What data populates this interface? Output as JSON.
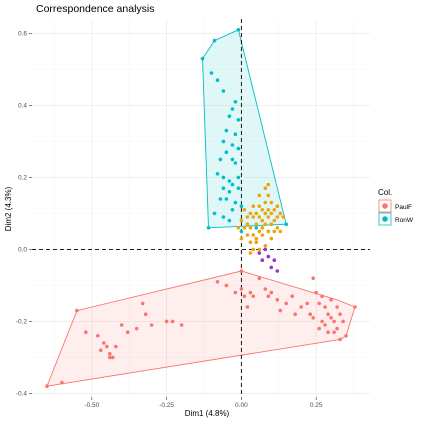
{
  "chart_data": {
    "type": "scatter",
    "title": "Correspondence analysis",
    "xlabel": "Dim1 (4.8%)",
    "ylabel": "Dim2 (4.3%)",
    "xlim": [
      -0.7,
      0.43
    ],
    "ylim": [
      -0.41,
      0.64
    ],
    "x_ticks": [
      -0.5,
      -0.25,
      0.0,
      0.25
    ],
    "x_tick_labels": [
      "-0.50",
      "-0.25",
      "0.00",
      "0.25"
    ],
    "y_ticks": [
      -0.4,
      -0.2,
      0.0,
      0.2,
      0.4,
      0.6
    ],
    "y_tick_labels": [
      "-0.4",
      "-0.2",
      "0.0",
      "0.2",
      "0.4",
      "0.6"
    ],
    "grid": true,
    "reference_lines": {
      "x": 0,
      "y": 0,
      "style": "dashed"
    },
    "legend": {
      "title": "Col.",
      "position": "right",
      "entries": [
        {
          "label": "PaulF",
          "color": "#F8766D"
        },
        {
          "label": "RonW",
          "color": "#00BFC4"
        }
      ]
    },
    "series": [
      {
        "name": "PaulF",
        "color": "#F8766D",
        "hull": [
          [
            -0.65,
            -0.38
          ],
          [
            -0.55,
            -0.17
          ],
          [
            0.0,
            -0.06
          ],
          [
            0.32,
            -0.14
          ],
          [
            0.38,
            -0.16
          ],
          [
            0.35,
            -0.24
          ],
          [
            0.33,
            -0.25
          ]
        ],
        "points": [
          [
            -0.65,
            -0.38
          ],
          [
            -0.6,
            -0.37
          ],
          [
            -0.55,
            -0.17
          ],
          [
            -0.52,
            -0.23
          ],
          [
            -0.45,
            -0.27
          ],
          [
            -0.48,
            -0.24
          ],
          [
            -0.47,
            -0.28
          ],
          [
            -0.44,
            -0.29
          ],
          [
            -0.46,
            -0.26
          ],
          [
            -0.44,
            -0.3
          ],
          [
            -0.43,
            -0.3
          ],
          [
            -0.42,
            -0.27
          ],
          [
            -0.4,
            -0.21
          ],
          [
            -0.38,
            -0.23
          ],
          [
            -0.35,
            -0.22
          ],
          [
            -0.33,
            -0.15
          ],
          [
            -0.32,
            -0.18
          ],
          [
            -0.3,
            -0.21
          ],
          [
            -0.25,
            -0.2
          ],
          [
            -0.23,
            -0.2
          ],
          [
            -0.2,
            -0.21
          ],
          [
            -0.08,
            -0.09
          ],
          [
            -0.05,
            -0.1
          ],
          [
            -0.02,
            -0.12
          ],
          [
            0.0,
            -0.06
          ],
          [
            0.0,
            -0.11
          ],
          [
            0.01,
            -0.13
          ],
          [
            0.02,
            -0.16
          ],
          [
            0.03,
            -0.12
          ],
          [
            0.04,
            -0.13
          ],
          [
            0.06,
            -0.08
          ],
          [
            0.08,
            -0.11
          ],
          [
            0.09,
            -0.13
          ],
          [
            0.1,
            -0.12
          ],
          [
            0.12,
            -0.14
          ],
          [
            0.13,
            -0.17
          ],
          [
            0.15,
            -0.15
          ],
          [
            0.17,
            -0.13
          ],
          [
            0.18,
            -0.18
          ],
          [
            0.2,
            -0.16
          ],
          [
            0.22,
            -0.15
          ],
          [
            0.23,
            -0.18
          ],
          [
            0.24,
            -0.08
          ],
          [
            0.25,
            -0.12
          ],
          [
            0.26,
            -0.15
          ],
          [
            0.27,
            -0.13
          ],
          [
            0.27,
            -0.2
          ],
          [
            0.28,
            -0.16
          ],
          [
            0.28,
            -0.21
          ],
          [
            0.29,
            -0.18
          ],
          [
            0.3,
            -0.14
          ],
          [
            0.3,
            -0.19
          ],
          [
            0.31,
            -0.2
          ],
          [
            0.32,
            -0.16
          ],
          [
            0.32,
            -0.22
          ],
          [
            0.33,
            -0.18
          ],
          [
            0.33,
            -0.25
          ],
          [
            0.34,
            -0.2
          ],
          [
            0.35,
            -0.24
          ],
          [
            0.38,
            -0.16
          ],
          [
            0.26,
            -0.22
          ],
          [
            0.24,
            -0.19
          ],
          [
            0.29,
            -0.23
          ],
          [
            0.31,
            -0.23
          ]
        ]
      },
      {
        "name": "RonW",
        "color": "#00BFC4",
        "hull": [
          [
            -0.13,
            0.53
          ],
          [
            -0.09,
            0.58
          ],
          [
            -0.01,
            0.61
          ],
          [
            0.15,
            0.07
          ],
          [
            -0.11,
            0.06
          ]
        ],
        "points": [
          [
            -0.13,
            0.53
          ],
          [
            -0.09,
            0.58
          ],
          [
            -0.01,
            0.61
          ],
          [
            -0.1,
            0.49
          ],
          [
            -0.08,
            0.47
          ],
          [
            -0.06,
            0.44
          ],
          [
            -0.03,
            0.39
          ],
          [
            -0.02,
            0.41
          ],
          [
            -0.04,
            0.37
          ],
          [
            -0.05,
            0.33
          ],
          [
            -0.01,
            0.36
          ],
          [
            -0.02,
            0.32
          ],
          [
            -0.06,
            0.3
          ],
          [
            -0.03,
            0.29
          ],
          [
            -0.01,
            0.28
          ],
          [
            -0.05,
            0.27
          ],
          [
            -0.03,
            0.25
          ],
          [
            -0.07,
            0.25
          ],
          [
            -0.02,
            0.24
          ],
          [
            -0.08,
            0.21
          ],
          [
            -0.06,
            0.2
          ],
          [
            -0.04,
            0.19
          ],
          [
            -0.03,
            0.18
          ],
          [
            -0.06,
            0.17
          ],
          [
            -0.01,
            0.17
          ],
          [
            -0.04,
            0.16
          ],
          [
            -0.07,
            0.14
          ],
          [
            -0.05,
            0.14
          ],
          [
            -0.02,
            0.13
          ],
          [
            -0.03,
            0.11
          ],
          [
            -0.09,
            0.1
          ],
          [
            -0.06,
            0.09
          ],
          [
            -0.04,
            0.08
          ],
          [
            -0.11,
            0.06
          ],
          [
            0.0,
            0.05
          ],
          [
            0.05,
            0.06
          ],
          [
            0.1,
            0.07
          ],
          [
            0.15,
            0.07
          ],
          [
            -0.01,
            0.2
          ],
          [
            0.0,
            0.12
          ]
        ]
      },
      {
        "name": "",
        "color": "#F0A30A",
        "points": [
          [
            0.08,
            0.17
          ],
          [
            0.09,
            0.18
          ],
          [
            0.06,
            0.15
          ],
          [
            0.09,
            0.15
          ],
          [
            0.08,
            0.13
          ],
          [
            0.1,
            0.13
          ],
          [
            0.04,
            0.12
          ],
          [
            0.06,
            0.12
          ],
          [
            0.07,
            0.11
          ],
          [
            0.09,
            0.11
          ],
          [
            0.11,
            0.11
          ],
          [
            0.12,
            0.12
          ],
          [
            0.01,
            0.11
          ],
          [
            0.03,
            0.1
          ],
          [
            0.05,
            0.1
          ],
          [
            0.08,
            0.1
          ],
          [
            0.1,
            0.1
          ],
          [
            0.13,
            0.1
          ],
          [
            0.02,
            0.09
          ],
          [
            0.04,
            0.09
          ],
          [
            0.06,
            0.09
          ],
          [
            0.07,
            0.08
          ],
          [
            0.09,
            0.09
          ],
          [
            0.11,
            0.08
          ],
          [
            0.12,
            0.09
          ],
          [
            0.14,
            0.09
          ],
          [
            0.0,
            0.08
          ],
          [
            0.02,
            0.07
          ],
          [
            0.05,
            0.07
          ],
          [
            0.08,
            0.07
          ],
          [
            0.1,
            0.07
          ],
          [
            0.12,
            0.06
          ],
          [
            -0.01,
            0.06
          ],
          [
            0.01,
            0.06
          ],
          [
            0.03,
            0.06
          ],
          [
            0.06,
            0.05
          ],
          [
            0.09,
            0.05
          ],
          [
            0.11,
            0.05
          ],
          [
            0.13,
            0.05
          ],
          [
            0.02,
            0.04
          ],
          [
            0.04,
            0.04
          ],
          [
            0.07,
            0.04
          ],
          [
            0.1,
            0.03
          ],
          [
            0.0,
            0.03
          ],
          [
            0.03,
            0.02
          ],
          [
            0.05,
            0.02
          ],
          [
            0.08,
            0.01
          ],
          [
            0.04,
            0.0
          ],
          [
            0.06,
            0.0
          ],
          [
            0.03,
            -0.01
          ],
          [
            0.05,
            0.03
          ],
          [
            0.07,
            0.06
          ]
        ]
      },
      {
        "name": "",
        "color": "#9933CC",
        "points": [
          [
            0.06,
            -0.01
          ],
          [
            0.08,
            0.0
          ],
          [
            0.09,
            -0.02
          ],
          [
            0.07,
            -0.03
          ],
          [
            0.11,
            -0.03
          ],
          [
            0.1,
            -0.05
          ],
          [
            0.12,
            -0.06
          ]
        ]
      }
    ]
  }
}
